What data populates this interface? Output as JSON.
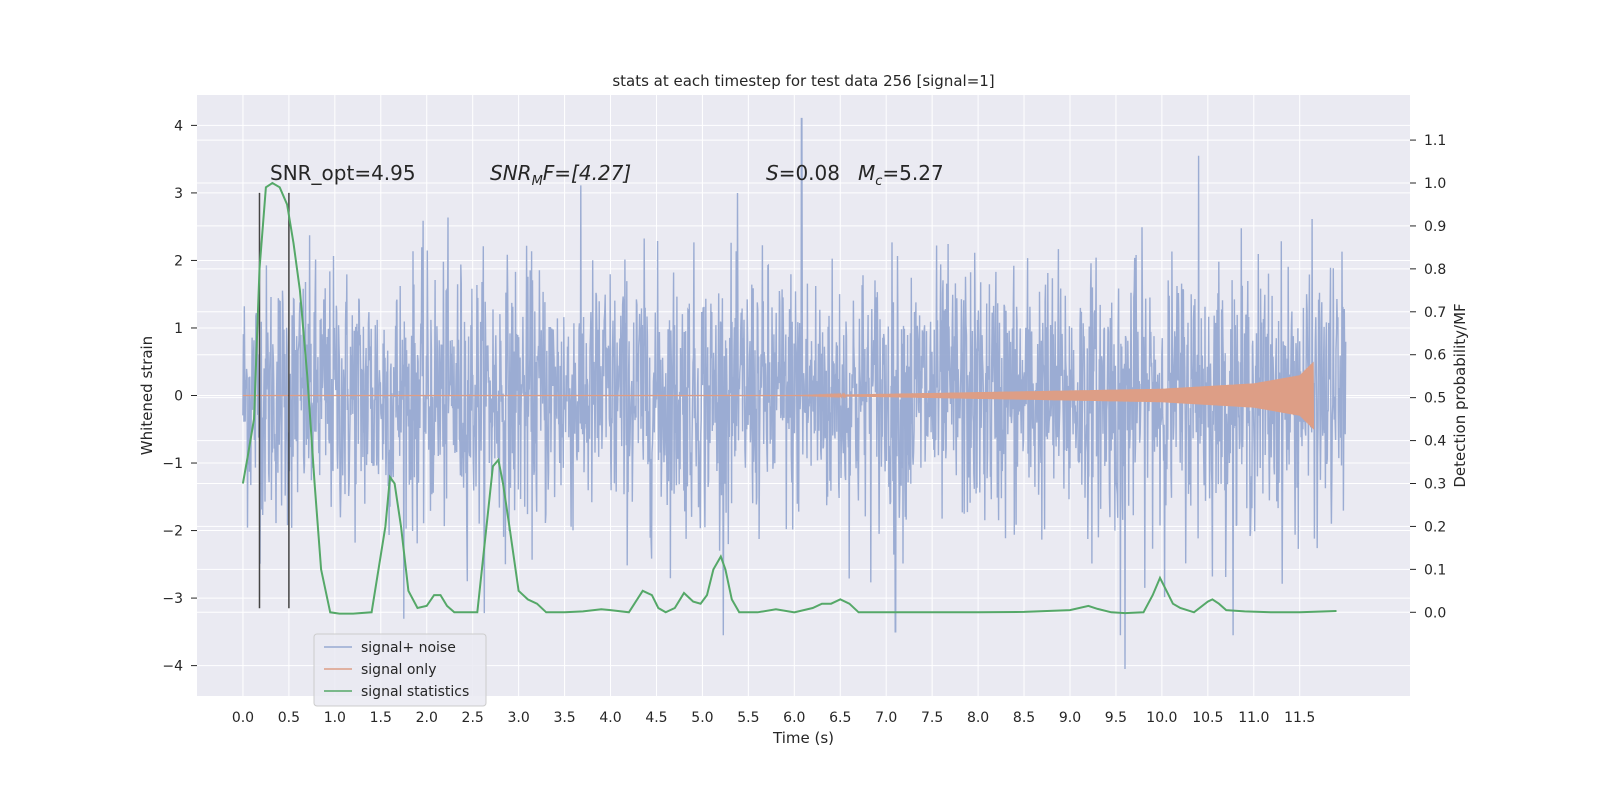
{
  "chart_data": {
    "type": "line",
    "title": "stats at each timestep for test data 256 [signal=1]",
    "xlabel": "Time (s)",
    "ylabel_left": "Whitened strain",
    "ylabel_right": "Detection probability/MF",
    "xlim": [
      -0.5,
      12.7
    ],
    "ylim_left": [
      -4.45,
      4.45
    ],
    "ylim_right": [
      -0.195,
      1.205
    ],
    "x_ticks": [
      0.0,
      0.5,
      1.0,
      1.5,
      2.0,
      2.5,
      3.0,
      3.5,
      4.0,
      4.5,
      5.0,
      5.5,
      6.0,
      6.5,
      7.0,
      7.5,
      8.0,
      8.5,
      9.0,
      9.5,
      10.0,
      10.5,
      11.0,
      11.5
    ],
    "x_tick_labels": [
      "0.0",
      "0.5",
      "1.0",
      "1.5",
      "2.0",
      "2.5",
      "3.0",
      "3.5",
      "4.0",
      "4.5",
      "5.0",
      "5.5",
      "6.0",
      "6.5",
      "7.0",
      "7.5",
      "8.0",
      "8.5",
      "9.0",
      "9.5",
      "10.0",
      "10.5",
      "11.0",
      "11.5"
    ],
    "y_left_ticks": [
      4,
      3,
      2,
      1,
      0,
      -1,
      -2,
      -3,
      -4
    ],
    "y_left_tick_labels": [
      "4",
      "3",
      "2",
      "1",
      "0",
      "−1",
      "−2",
      "−3",
      "−4"
    ],
    "y_right_ticks": [
      1.1,
      1.0,
      0.9,
      0.8,
      0.7,
      0.6,
      0.5,
      0.4,
      0.3,
      0.2,
      0.1,
      0.0
    ],
    "y_right_tick_labels": [
      "1.1",
      "1.0",
      "0.9",
      "0.8",
      "0.7",
      "0.6",
      "0.5",
      "0.4",
      "0.3",
      "0.2",
      "0.1",
      "0.0"
    ],
    "grid": true,
    "annotations": {
      "snr_opt": "SNR_opt=4.95",
      "snr_mf_sym": "SNR",
      "snr_mf_sub": "M",
      "snr_mf_rest": "F=[4.27]",
      "s_sym": "S",
      "s_rest": "=0.08",
      "mc_sym": "M",
      "mc_sub": "c",
      "mc_rest": "=5.27"
    },
    "vertical_lines_x": [
      0.18,
      0.5
    ],
    "legend_placement": "lower-left",
    "colors": {
      "plot_bg": "#eaeaf2",
      "grid": "#ffffff",
      "noise": "#97a9d1",
      "signal": "#dd9e86",
      "stat": "#55a868",
      "vline": "#444444"
    },
    "series": [
      {
        "name": "signal+ noise",
        "axis": "left",
        "x_range": [
          0.0,
          12.0
        ],
        "typical_band": [
          -1.3,
          1.3
        ],
        "notable_peaks": [
          {
            "x": 6.08,
            "y": 4.1
          },
          {
            "x": 10.4,
            "y": 3.55
          },
          {
            "x": 9.6,
            "y": -4.05
          },
          {
            "x": 9.55,
            "y": -3.55
          },
          {
            "x": 7.1,
            "y": -3.5
          }
        ]
      },
      {
        "name": "signal only",
        "axis": "left",
        "x_range": [
          0.0,
          11.65
        ],
        "envelope": [
          {
            "x": 0.0,
            "y": 0.0
          },
          {
            "x": 6.0,
            "y": 0.0
          },
          {
            "x": 8.0,
            "y": 0.05
          },
          {
            "x": 10.0,
            "y": 0.1
          },
          {
            "x": 11.0,
            "y": 0.18
          },
          {
            "x": 11.5,
            "y": 0.3
          },
          {
            "x": 11.65,
            "y": 0.5
          }
        ]
      },
      {
        "name": "signal statistics",
        "axis": "right",
        "x": [
          0.0,
          0.05,
          0.12,
          0.18,
          0.25,
          0.32,
          0.4,
          0.48,
          0.55,
          0.62,
          0.7,
          0.78,
          0.85,
          0.95,
          1.05,
          1.2,
          1.4,
          1.55,
          1.6,
          1.65,
          1.72,
          1.8,
          1.9,
          2.0,
          2.08,
          2.15,
          2.22,
          2.3,
          2.4,
          2.55,
          2.65,
          2.72,
          2.78,
          2.83,
          2.9,
          3.0,
          3.1,
          3.2,
          3.3,
          3.4,
          3.5,
          3.7,
          3.9,
          4.0,
          4.2,
          4.35,
          4.45,
          4.52,
          4.6,
          4.7,
          4.8,
          4.9,
          4.98,
          5.05,
          5.12,
          5.2,
          5.25,
          5.32,
          5.4,
          5.5,
          5.6,
          5.8,
          6.0,
          6.2,
          6.3,
          6.4,
          6.5,
          6.6,
          6.7,
          6.8,
          7.0,
          7.5,
          8.0,
          8.5,
          9.0,
          9.2,
          9.3,
          9.45,
          9.6,
          9.8,
          9.9,
          9.98,
          10.05,
          10.12,
          10.2,
          10.35,
          10.5,
          10.55,
          10.62,
          10.7,
          10.9,
          11.2,
          11.5,
          11.9
        ],
        "y": [
          0.3,
          0.36,
          0.45,
          0.8,
          0.99,
          1.0,
          0.99,
          0.95,
          0.86,
          0.75,
          0.55,
          0.3,
          0.1,
          0.0,
          -0.003,
          -0.003,
          0.0,
          0.2,
          0.315,
          0.3,
          0.2,
          0.05,
          0.01,
          0.015,
          0.04,
          0.04,
          0.015,
          0.0,
          0.0,
          0.0,
          0.2,
          0.34,
          0.355,
          0.3,
          0.2,
          0.05,
          0.03,
          0.02,
          0.0,
          0.0,
          0.0,
          0.002,
          0.007,
          0.005,
          0.0,
          0.05,
          0.04,
          0.01,
          0.0,
          0.01,
          0.045,
          0.025,
          0.02,
          0.04,
          0.1,
          0.13,
          0.1,
          0.03,
          0.0,
          0.0,
          0.0,
          0.007,
          0.0,
          0.01,
          0.02,
          0.02,
          0.03,
          0.02,
          0.0,
          0.0,
          0.0,
          0.0,
          0.0,
          0.001,
          0.005,
          0.015,
          0.008,
          0.0,
          -0.002,
          0.0,
          0.04,
          0.08,
          0.05,
          0.02,
          0.01,
          0.0,
          0.025,
          0.03,
          0.02,
          0.005,
          0.002,
          0.0,
          0.0,
          0.003
        ]
      }
    ]
  }
}
